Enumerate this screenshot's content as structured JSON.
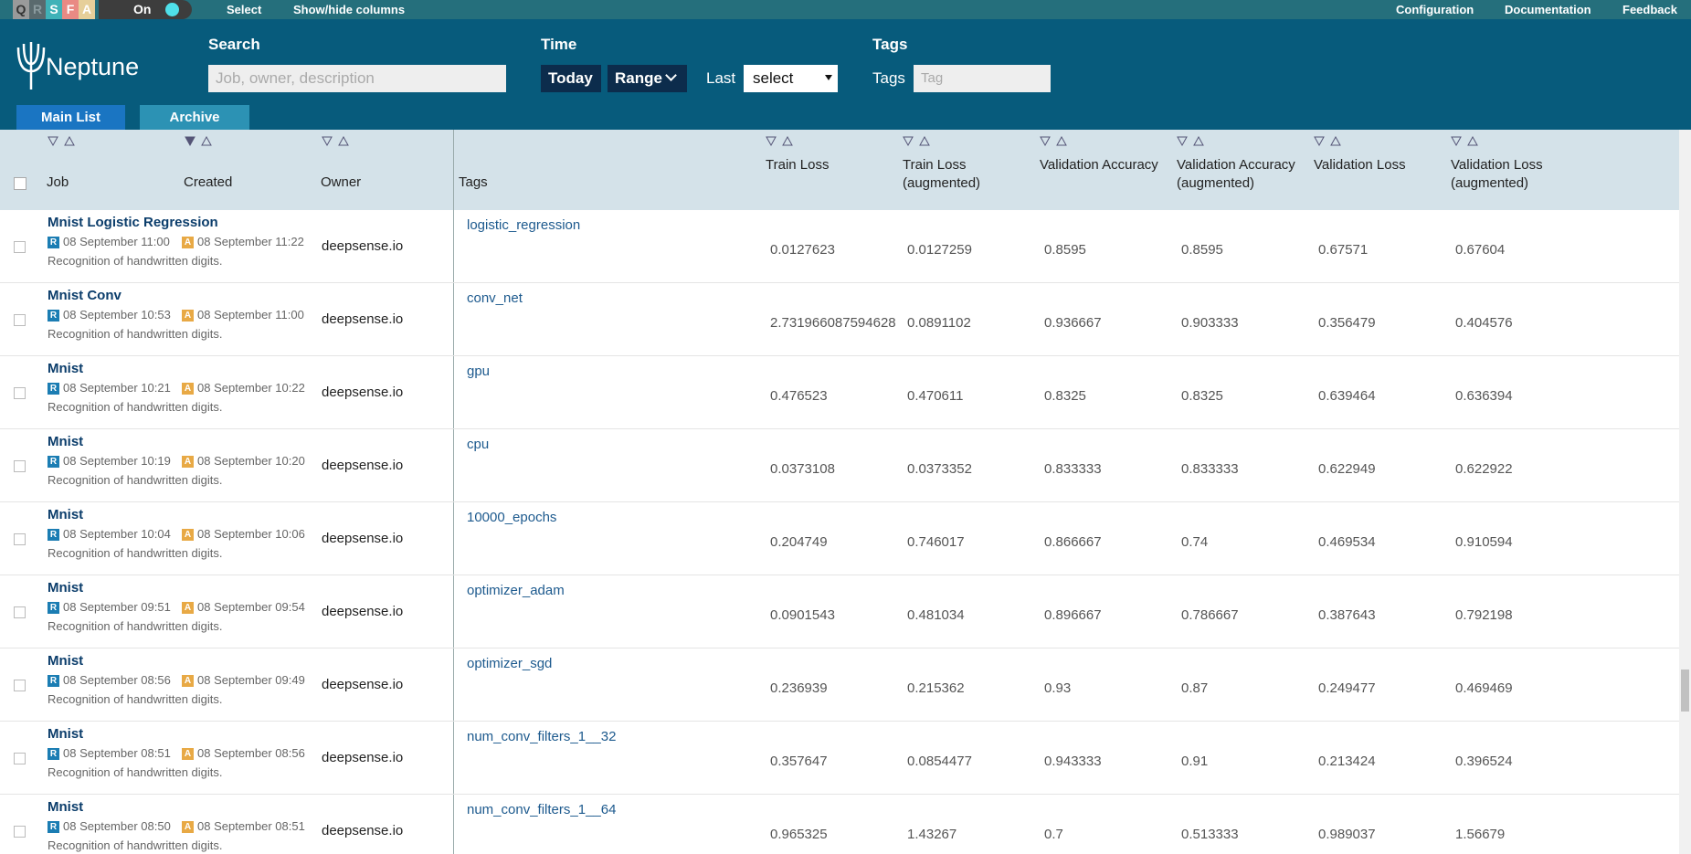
{
  "topbar": {
    "modes": [
      "Q",
      "R",
      "S",
      "F",
      "A"
    ],
    "toggle": "On",
    "actions": [
      "Select",
      "Show/hide columns"
    ],
    "links": [
      "Configuration",
      "Documentation",
      "Feedback"
    ]
  },
  "header": {
    "logo": "Neptune",
    "search": {
      "label": "Search",
      "placeholder": "Job, owner, description"
    },
    "time": {
      "label": "Time",
      "today": "Today",
      "range": "Range",
      "last": "Last",
      "select": "select"
    },
    "tags": {
      "label": "Tags",
      "field_label": "Tags",
      "placeholder": "Tag"
    },
    "tabs": [
      "Main List",
      "Archive"
    ]
  },
  "table": {
    "columns": [
      "Job",
      "Created",
      "Owner",
      "Tags",
      "Train Loss",
      "Train Loss (augmented)",
      "Validation Accuracy",
      "Validation Accuracy (augmented)",
      "Validation Loss",
      "Validation Loss (augmented)"
    ],
    "badges": {
      "running": "R",
      "archived": "A"
    },
    "rows": [
      {
        "name": "Mnist Logistic Regression",
        "started": "08 September 11:00",
        "finished": "08 September 11:22",
        "description": "Recognition of handwritten digits.",
        "owner": "deepsense.io",
        "tag": "logistic_regression",
        "metrics": [
          "0.0127623",
          "0.0127259",
          "0.8595",
          "0.8595",
          "0.67571",
          "0.67604"
        ]
      },
      {
        "name": "Mnist Conv",
        "started": "08 September 10:53",
        "finished": "08 September 11:00",
        "description": "Recognition of handwritten digits.",
        "owner": "deepsense.io",
        "tag": "conv_net",
        "metrics": [
          "2.731966087594628",
          "0.0891102",
          "0.936667",
          "0.903333",
          "0.356479",
          "0.404576"
        ]
      },
      {
        "name": "Mnist",
        "started": "08 September 10:21",
        "finished": "08 September 10:22",
        "description": "Recognition of handwritten digits.",
        "owner": "deepsense.io",
        "tag": "gpu",
        "metrics": [
          "0.476523",
          "0.470611",
          "0.8325",
          "0.8325",
          "0.639464",
          "0.636394"
        ]
      },
      {
        "name": "Mnist",
        "started": "08 September 10:19",
        "finished": "08 September 10:20",
        "description": "Recognition of handwritten digits.",
        "owner": "deepsense.io",
        "tag": "cpu",
        "metrics": [
          "0.0373108",
          "0.0373352",
          "0.833333",
          "0.833333",
          "0.622949",
          "0.622922"
        ]
      },
      {
        "name": "Mnist",
        "started": "08 September 10:04",
        "finished": "08 September 10:06",
        "description": "Recognition of handwritten digits.",
        "owner": "deepsense.io",
        "tag": "10000_epochs",
        "metrics": [
          "0.204749",
          "0.746017",
          "0.866667",
          "0.74",
          "0.469534",
          "0.910594"
        ]
      },
      {
        "name": "Mnist",
        "started": "08 September 09:51",
        "finished": "08 September 09:54",
        "description": "Recognition of handwritten digits.",
        "owner": "deepsense.io",
        "tag": "optimizer_adam",
        "metrics": [
          "0.0901543",
          "0.481034",
          "0.896667",
          "0.786667",
          "0.387643",
          "0.792198"
        ]
      },
      {
        "name": "Mnist",
        "started": "08 September 08:56",
        "finished": "08 September 09:49",
        "description": "Recognition of handwritten digits.",
        "owner": "deepsense.io",
        "tag": "optimizer_sgd",
        "metrics": [
          "0.236939",
          "0.215362",
          "0.93",
          "0.87",
          "0.249477",
          "0.469469"
        ]
      },
      {
        "name": "Mnist",
        "started": "08 September 08:51",
        "finished": "08 September 08:56",
        "description": "Recognition of handwritten digits.",
        "owner": "deepsense.io",
        "tag": "num_conv_filters_1__32",
        "metrics": [
          "0.357647",
          "0.0854477",
          "0.943333",
          "0.91",
          "0.213424",
          "0.396524"
        ]
      },
      {
        "name": "Mnist",
        "started": "08 September 08:50",
        "finished": "08 September 08:51",
        "description": "Recognition of handwritten digits.",
        "owner": "deepsense.io",
        "tag": "num_conv_filters_1__64",
        "metrics": [
          "0.965325",
          "1.43267",
          "0.7",
          "0.513333",
          "0.989037",
          "1.56679"
        ]
      }
    ]
  }
}
